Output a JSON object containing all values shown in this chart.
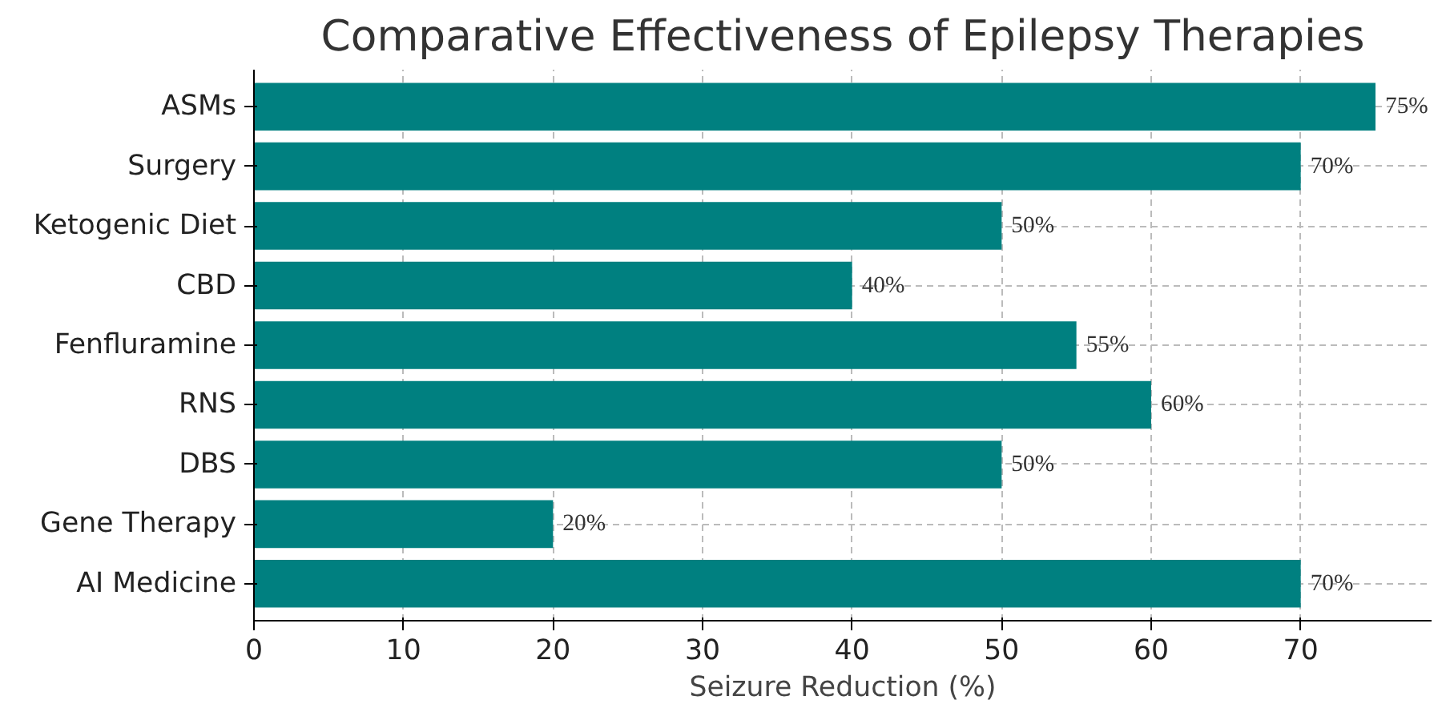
{
  "chart_data": {
    "type": "bar",
    "orientation": "horizontal",
    "title": "Comparative Effectiveness of Epilepsy Therapies",
    "xlabel": "Seizure Reduction (%)",
    "categories": [
      "ASMs",
      "Surgery",
      "Ketogenic Diet",
      "CBD",
      "Fenfluramine",
      "RNS",
      "DBS",
      "Gene Therapy",
      "AI Medicine"
    ],
    "values": [
      75,
      70,
      50,
      40,
      55,
      60,
      50,
      20,
      70
    ],
    "value_labels": [
      "75%",
      "70%",
      "50%",
      "40%",
      "55%",
      "60%",
      "50%",
      "20%",
      "70%"
    ],
    "color": "#008080",
    "xlim": [
      0,
      78.75
    ],
    "xticks": [
      0,
      10,
      20,
      30,
      40,
      50,
      60,
      70
    ],
    "grid": true
  }
}
